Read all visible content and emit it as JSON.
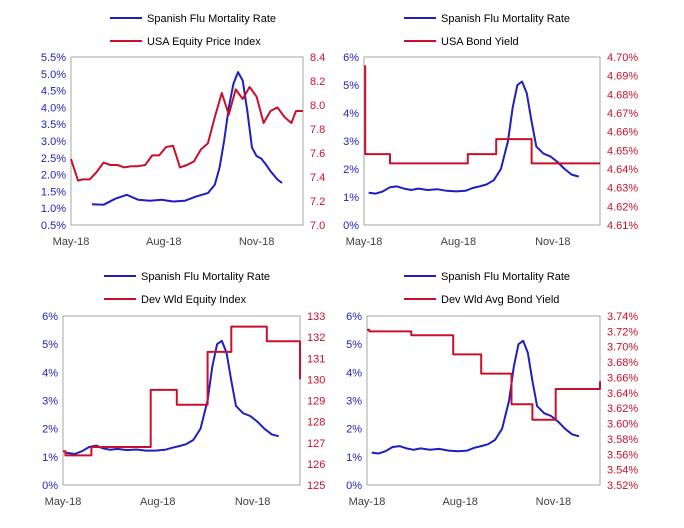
{
  "colors": {
    "flu": "#1f1fbf",
    "market": "#c8102e",
    "frame": "#a6a6a6",
    "xtick": "#404040"
  },
  "chart_data": [
    {
      "type": "line",
      "legend": [
        "Spanish Flu Mortality Rate",
        "USA Equity Price Index"
      ],
      "x_ticks": [
        "May-18",
        "Aug-18",
        "Nov-18"
      ],
      "left_axis": {
        "ticks": [
          "0.5%",
          "1.0%",
          "1.5%",
          "2.0%",
          "2.5%",
          "3.0%",
          "3.5%",
          "4.0%",
          "4.5%",
          "5.0%",
          "5.5%"
        ],
        "min": 0.5,
        "max": 5.5
      },
      "right_axis": {
        "ticks": [
          "7.0",
          "7.2",
          "7.4",
          "7.6",
          "7.8",
          "8.0",
          "8.2",
          "8.4"
        ],
        "min": 7.0,
        "max": 8.4
      },
      "series": [
        {
          "name": "Spanish Flu Mortality Rate",
          "axis": "left",
          "step": false,
          "x": [
            0.09,
            0.14,
            0.19,
            0.24,
            0.29,
            0.34,
            0.39,
            0.44,
            0.49,
            0.54,
            0.59,
            0.62,
            0.64,
            0.66,
            0.68,
            0.7,
            0.72,
            0.74,
            0.76,
            0.78,
            0.8,
            0.82,
            0.84,
            0.86,
            0.89,
            0.91
          ],
          "y": [
            1.12,
            1.1,
            1.28,
            1.4,
            1.25,
            1.22,
            1.25,
            1.2,
            1.22,
            1.35,
            1.45,
            1.7,
            2.2,
            3.0,
            4.0,
            4.7,
            5.05,
            4.8,
            3.9,
            2.8,
            2.55,
            2.48,
            2.3,
            2.1,
            1.85,
            1.75
          ]
        },
        {
          "name": "USA Equity Price Index",
          "axis": "right",
          "step": false,
          "x": [
            0.0,
            0.03,
            0.05,
            0.08,
            0.11,
            0.14,
            0.17,
            0.2,
            0.23,
            0.26,
            0.29,
            0.32,
            0.35,
            0.38,
            0.41,
            0.44,
            0.47,
            0.5,
            0.53,
            0.56,
            0.59,
            0.62,
            0.65,
            0.68,
            0.71,
            0.74,
            0.77,
            0.8,
            0.83,
            0.86,
            0.89,
            0.92,
            0.95,
            0.97,
            1.0
          ],
          "y": [
            7.55,
            7.37,
            7.38,
            7.38,
            7.44,
            7.52,
            7.5,
            7.5,
            7.48,
            7.49,
            7.49,
            7.5,
            7.58,
            7.58,
            7.65,
            7.66,
            7.48,
            7.5,
            7.53,
            7.63,
            7.68,
            7.9,
            8.1,
            7.92,
            8.13,
            8.05,
            8.15,
            8.07,
            7.85,
            7.95,
            7.98,
            7.9,
            7.85,
            7.95,
            7.95
          ]
        }
      ]
    },
    {
      "type": "line",
      "legend": [
        "Spanish Flu Mortality Rate",
        "USA Bond Yield"
      ],
      "x_ticks": [
        "May-18",
        "Aug-18",
        "Nov-18"
      ],
      "left_axis": {
        "ticks": [
          "0%",
          "1%",
          "2%",
          "3%",
          "4%",
          "5%",
          "6%"
        ],
        "min": 0,
        "max": 6
      },
      "right_axis": {
        "ticks": [
          "4.61%",
          "4.62%",
          "4.63%",
          "4.64%",
          "4.65%",
          "4.66%",
          "4.67%",
          "4.68%",
          "4.69%",
          "4.70%"
        ],
        "min": 4.61,
        "max": 4.7
      },
      "series": [
        {
          "name": "Spanish Flu Mortality Rate",
          "axis": "left",
          "step": false,
          "x": [
            0.02,
            0.05,
            0.08,
            0.11,
            0.14,
            0.17,
            0.2,
            0.23,
            0.27,
            0.31,
            0.35,
            0.39,
            0.43,
            0.46,
            0.49,
            0.52,
            0.55,
            0.58,
            0.61,
            0.63,
            0.65,
            0.67,
            0.69,
            0.71,
            0.73,
            0.76,
            0.79,
            0.82,
            0.85,
            0.88,
            0.91
          ],
          "y": [
            1.15,
            1.12,
            1.2,
            1.35,
            1.38,
            1.3,
            1.25,
            1.3,
            1.25,
            1.28,
            1.22,
            1.2,
            1.22,
            1.32,
            1.38,
            1.45,
            1.6,
            2.0,
            3.0,
            4.2,
            5.0,
            5.12,
            4.7,
            3.7,
            2.8,
            2.55,
            2.45,
            2.25,
            2.0,
            1.8,
            1.73
          ]
        },
        {
          "name": "USA Bond Yield",
          "axis": "right",
          "step": true,
          "x": [
            0.0,
            0.005,
            0.11,
            0.35,
            0.44,
            0.56,
            0.71,
            1.0
          ],
          "y": [
            4.695,
            4.648,
            4.643,
            4.643,
            4.648,
            4.656,
            4.643,
            4.643
          ]
        }
      ]
    },
    {
      "type": "line",
      "legend": [
        "Spanish Flu Mortality Rate",
        "Dev Wld Equity Index"
      ],
      "x_ticks": [
        "May-18",
        "Aug-18",
        "Nov-18"
      ],
      "left_axis": {
        "ticks": [
          "0%",
          "1%",
          "2%",
          "3%",
          "4%",
          "5%",
          "6%"
        ],
        "min": 0,
        "max": 6
      },
      "right_axis": {
        "ticks": [
          "125",
          "126",
          "127",
          "128",
          "129",
          "130",
          "131",
          "132",
          "133"
        ],
        "min": 125,
        "max": 133
      },
      "series": [
        {
          "name": "Spanish Flu Mortality Rate",
          "axis": "left",
          "step": false,
          "x": [
            0.01,
            0.05,
            0.08,
            0.11,
            0.14,
            0.17,
            0.2,
            0.23,
            0.27,
            0.31,
            0.35,
            0.39,
            0.43,
            0.46,
            0.49,
            0.52,
            0.55,
            0.58,
            0.61,
            0.63,
            0.65,
            0.67,
            0.69,
            0.71,
            0.73,
            0.76,
            0.79,
            0.82,
            0.85,
            0.88,
            0.91
          ],
          "y": [
            1.15,
            1.1,
            1.2,
            1.35,
            1.4,
            1.3,
            1.25,
            1.28,
            1.24,
            1.26,
            1.22,
            1.22,
            1.25,
            1.32,
            1.38,
            1.45,
            1.6,
            2.0,
            3.0,
            4.2,
            5.0,
            5.12,
            4.7,
            3.7,
            2.8,
            2.55,
            2.45,
            2.25,
            2.0,
            1.8,
            1.73
          ]
        },
        {
          "name": "Dev Wld Equity Index",
          "axis": "right",
          "step": true,
          "x": [
            0.0,
            0.01,
            0.12,
            0.24,
            0.37,
            0.48,
            0.61,
            0.63,
            0.71,
            0.86,
            1.0
          ],
          "y": [
            126.6,
            126.4,
            126.8,
            126.8,
            129.5,
            128.8,
            131.3,
            131.3,
            132.5,
            131.8,
            130.0
          ]
        }
      ]
    },
    {
      "type": "line",
      "legend": [
        "Spanish Flu Mortality Rate",
        "Dev Wld Avg Bond Yield"
      ],
      "x_ticks": [
        "May-18",
        "Aug-18",
        "Nov-18"
      ],
      "left_axis": {
        "ticks": [
          "0%",
          "1%",
          "2%",
          "3%",
          "4%",
          "5%",
          "6%"
        ],
        "min": 0,
        "max": 6
      },
      "right_axis": {
        "ticks": [
          "3.52%",
          "3.54%",
          "3.56%",
          "3.58%",
          "3.60%",
          "3.62%",
          "3.64%",
          "3.66%",
          "3.68%",
          "3.70%",
          "3.72%",
          "3.74%"
        ],
        "min": 3.52,
        "max": 3.74
      },
      "series": [
        {
          "name": "Spanish Flu Mortality Rate",
          "axis": "left",
          "step": false,
          "x": [
            0.02,
            0.05,
            0.08,
            0.11,
            0.14,
            0.17,
            0.2,
            0.23,
            0.27,
            0.31,
            0.35,
            0.39,
            0.43,
            0.46,
            0.49,
            0.52,
            0.55,
            0.58,
            0.61,
            0.63,
            0.65,
            0.67,
            0.69,
            0.71,
            0.73,
            0.76,
            0.79,
            0.82,
            0.85,
            0.88,
            0.91
          ],
          "y": [
            1.15,
            1.12,
            1.2,
            1.35,
            1.38,
            1.3,
            1.25,
            1.3,
            1.25,
            1.28,
            1.22,
            1.2,
            1.22,
            1.32,
            1.38,
            1.45,
            1.6,
            2.0,
            3.0,
            4.2,
            5.0,
            5.12,
            4.7,
            3.7,
            2.8,
            2.55,
            2.45,
            2.25,
            2.0,
            1.8,
            1.73
          ]
        },
        {
          "name": "Dev Wld Avg Bond Yield",
          "axis": "right",
          "step": true,
          "x": [
            0.0,
            0.01,
            0.12,
            0.19,
            0.25,
            0.37,
            0.49,
            0.62,
            0.71,
            0.81,
            1.0
          ],
          "y": [
            3.722,
            3.72,
            3.72,
            3.715,
            3.715,
            3.69,
            3.665,
            3.625,
            3.605,
            3.645,
            3.655
          ]
        }
      ]
    }
  ]
}
